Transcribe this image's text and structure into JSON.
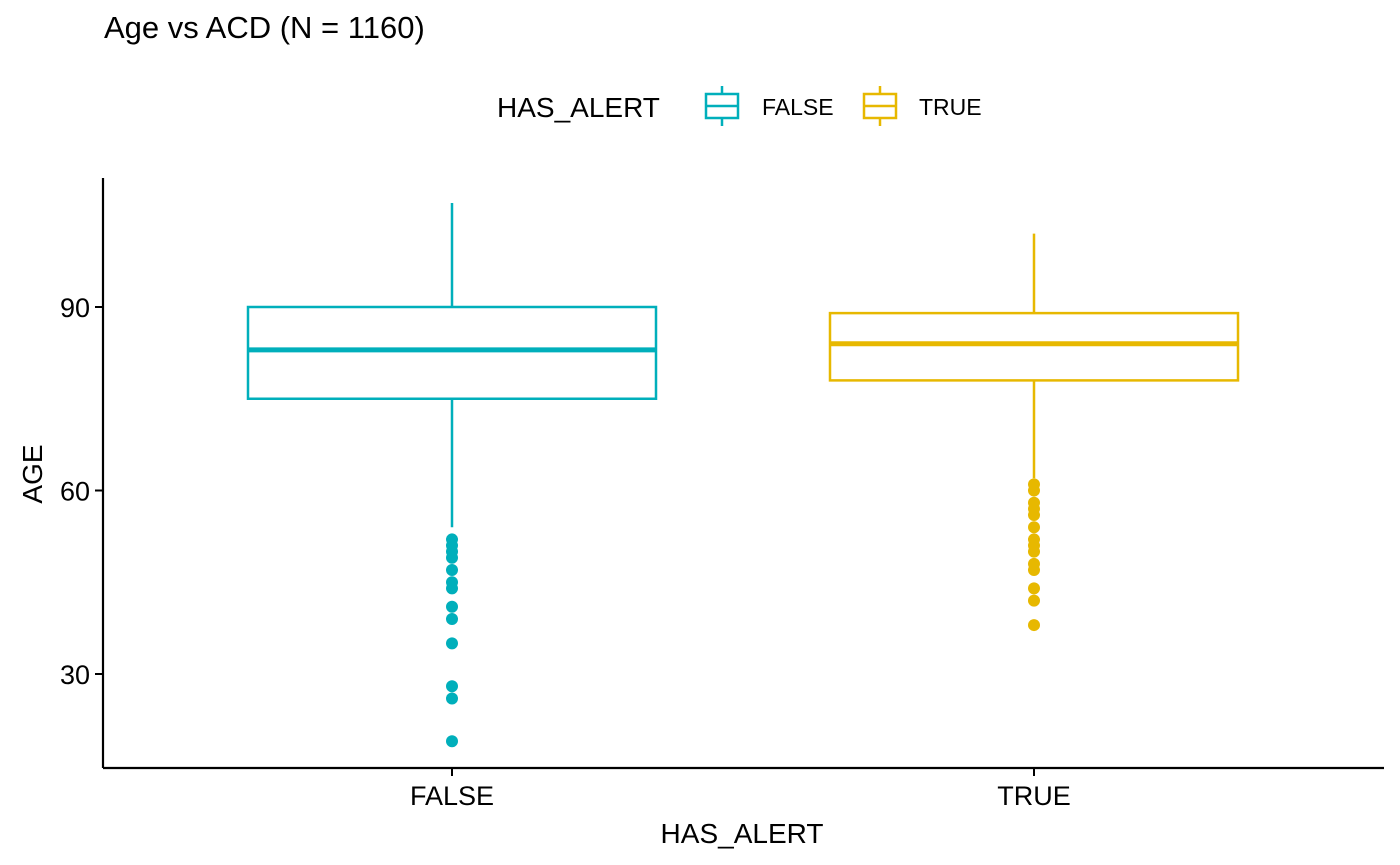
{
  "chart_data": {
    "type": "boxplot",
    "title": "Age vs ACD (N = 1160)",
    "xlabel": "HAS_ALERT",
    "ylabel": "AGE",
    "legend": {
      "title": "HAS_ALERT",
      "position": "top",
      "entries": [
        "FALSE",
        "TRUE"
      ]
    },
    "categories": [
      "FALSE",
      "TRUE"
    ],
    "ylim": [
      16,
      110
    ],
    "yticks": [
      30,
      60,
      90
    ],
    "grid": false,
    "colors": {
      "FALSE": "#00AFBB",
      "TRUE": "#E7B800"
    },
    "boxes": [
      {
        "category": "FALSE",
        "whisker_low": 54,
        "q1": 75,
        "median": 83,
        "q3": 90,
        "whisker_high": 107,
        "outliers": [
          52,
          51,
          50,
          49,
          47,
          45,
          44,
          41,
          39,
          35,
          28,
          26,
          19
        ]
      },
      {
        "category": "TRUE",
        "whisker_low": 62,
        "q1": 78,
        "median": 84,
        "q3": 89,
        "whisker_high": 102,
        "outliers": [
          61,
          60,
          58,
          57,
          56,
          54,
          52,
          51,
          50,
          48,
          47,
          44,
          42,
          38
        ]
      }
    ]
  }
}
